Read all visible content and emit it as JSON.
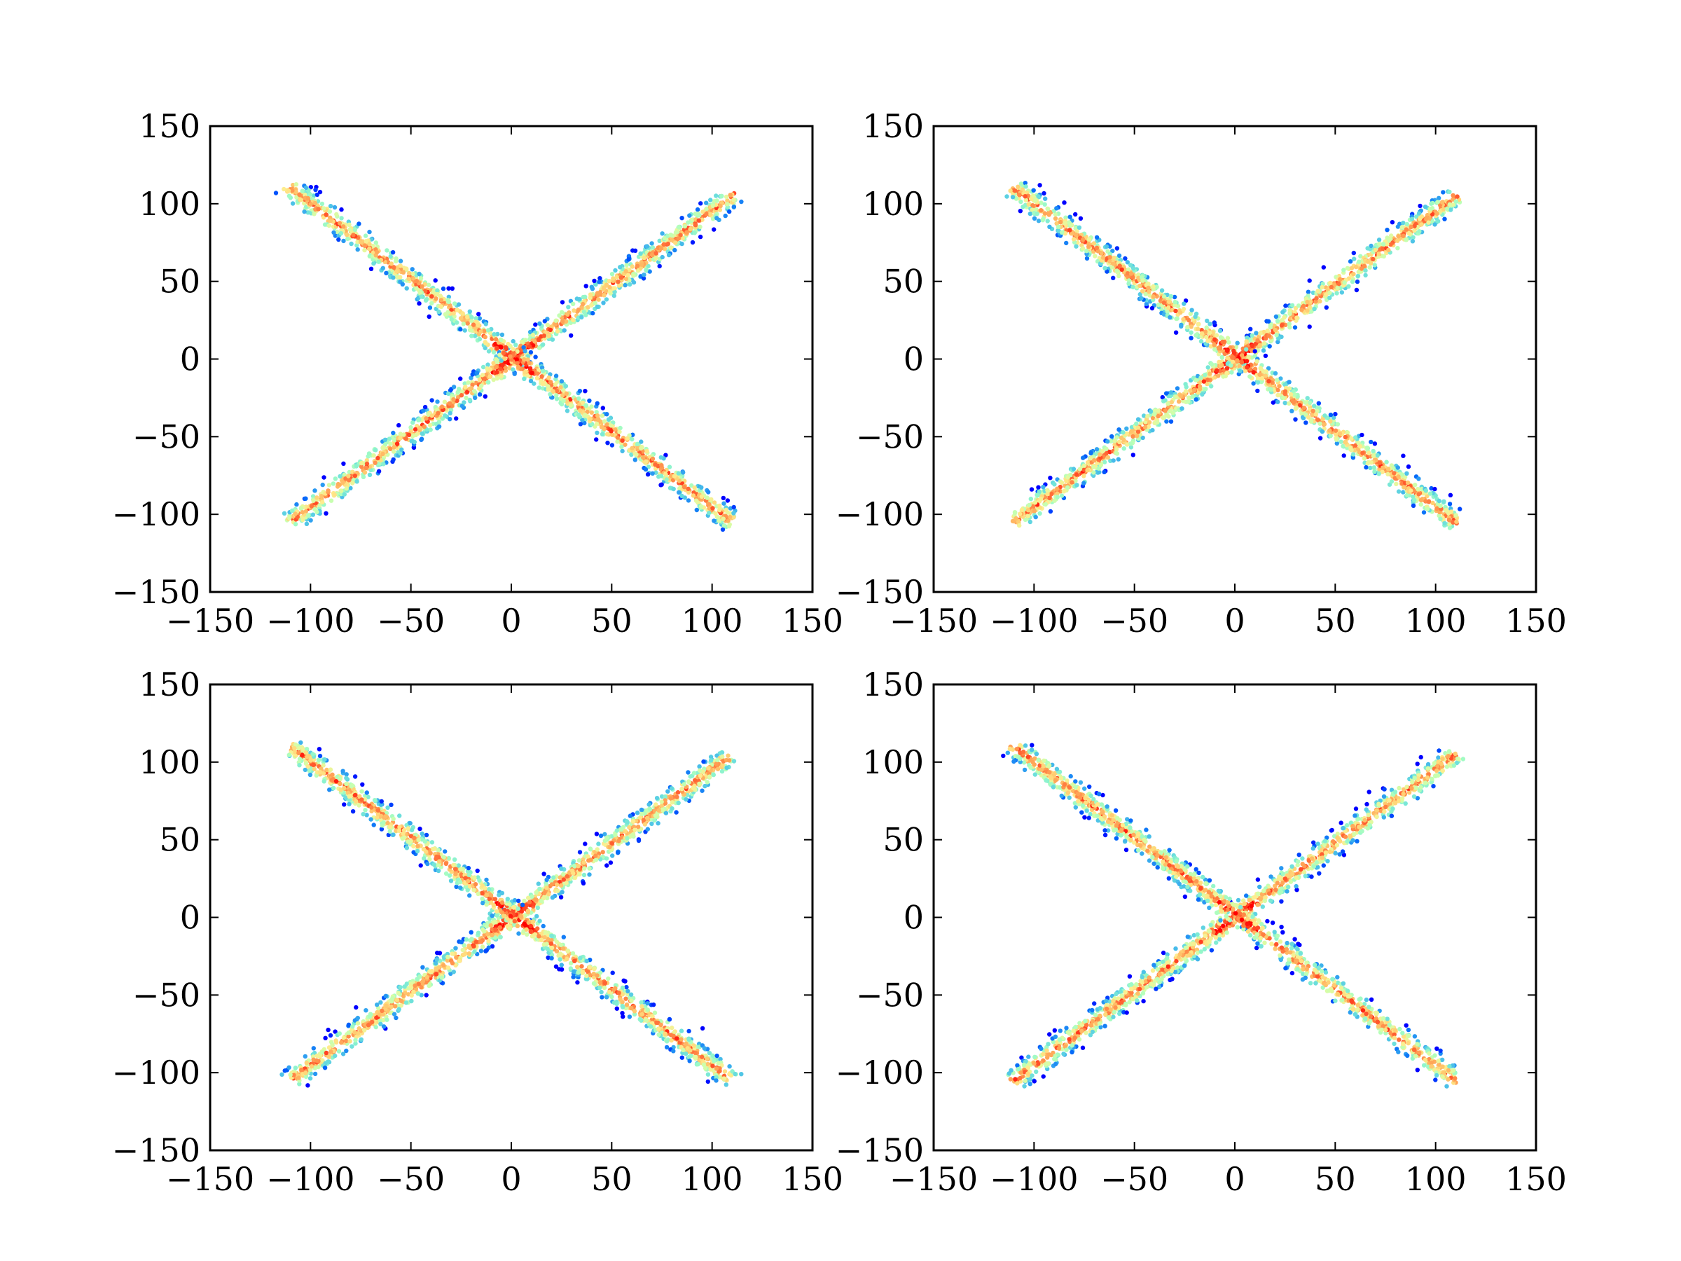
{
  "chart_data": [
    {
      "type": "scatter",
      "xlim": [
        -150,
        150
      ],
      "ylim": [
        -150,
        150
      ],
      "xticks": [
        "−150",
        "−100",
        "−50",
        "0",
        "50",
        "100",
        "150"
      ],
      "yticks": [
        "−150",
        "−100",
        "−50",
        "0",
        "50",
        "100",
        "150"
      ],
      "grid": false,
      "colormap": "rainbow (density)",
      "shape": "X formed by two diagonal bands",
      "arms": [
        {
          "from": [
            -110,
            -105
          ],
          "to": [
            110,
            105
          ]
        },
        {
          "from": [
            -110,
            110
          ],
          "to": [
            110,
            -105
          ]
        }
      ]
    },
    {
      "type": "scatter",
      "xlim": [
        -150,
        150
      ],
      "ylim": [
        -150,
        150
      ],
      "xticks": [
        "−150",
        "−100",
        "−50",
        "0",
        "50",
        "100",
        "150"
      ],
      "yticks": [
        "−150",
        "−100",
        "−50",
        "0",
        "50",
        "100",
        "150"
      ],
      "grid": false,
      "colormap": "rainbow (density)",
      "shape": "X formed by two diagonal bands",
      "arms": [
        {
          "from": [
            -110,
            -105
          ],
          "to": [
            110,
            105
          ]
        },
        {
          "from": [
            -110,
            110
          ],
          "to": [
            110,
            -105
          ]
        }
      ]
    },
    {
      "type": "scatter",
      "xlim": [
        -150,
        150
      ],
      "ylim": [
        -150,
        150
      ],
      "xticks": [
        "−150",
        "−100",
        "−50",
        "0",
        "50",
        "100",
        "150"
      ],
      "yticks": [
        "−150",
        "−100",
        "−50",
        "0",
        "50",
        "100",
        "150"
      ],
      "grid": false,
      "colormap": "rainbow (density)",
      "shape": "X formed by two diagonal bands",
      "arms": [
        {
          "from": [
            -110,
            -105
          ],
          "to": [
            110,
            105
          ]
        },
        {
          "from": [
            -110,
            110
          ],
          "to": [
            110,
            -105
          ]
        }
      ]
    },
    {
      "type": "scatter",
      "xlim": [
        -150,
        150
      ],
      "ylim": [
        -150,
        150
      ],
      "xticks": [
        "−150",
        "−100",
        "−50",
        "0",
        "50",
        "100",
        "150"
      ],
      "yticks": [
        "−150",
        "−100",
        "−50",
        "0",
        "50",
        "100",
        "150"
      ],
      "grid": false,
      "colormap": "rainbow (density)",
      "shape": "X formed by two diagonal bands",
      "arms": [
        {
          "from": [
            -110,
            -105
          ],
          "to": [
            110,
            105
          ]
        },
        {
          "from": [
            -110,
            110
          ],
          "to": [
            110,
            -105
          ]
        }
      ]
    }
  ]
}
